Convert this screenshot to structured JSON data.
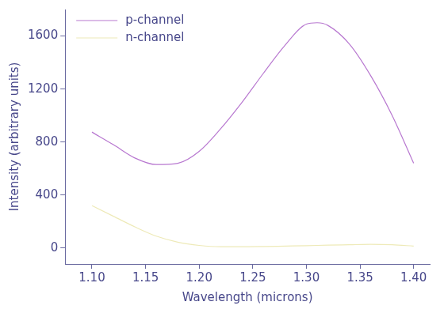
{
  "chart_data": {
    "type": "line",
    "x_label": "Wavelength (microns)",
    "y_label": "Intensity (arbitrary units)",
    "xlim": [
      1.075,
      1.415
    ],
    "xticks": [
      {
        "value": 1.1,
        "label": "1.10"
      },
      1.15,
      {
        "value": 1.2,
        "label": "1.20"
      },
      1.25,
      {
        "value": 1.3,
        "label": "1.30"
      },
      1.35,
      {
        "value": 1.4,
        "label": "1.40"
      }
    ],
    "ylim": [
      -120,
      1800
    ],
    "yticks": [
      0,
      400,
      800,
      1200,
      1600
    ],
    "grid": false,
    "legend": "upper left",
    "series": [
      {
        "name": "p-channel",
        "color": "#b878d0",
        "x": [
          1.1,
          1.12,
          1.14,
          1.16,
          1.18,
          1.2,
          1.22,
          1.24,
          1.26,
          1.28,
          1.3,
          1.31,
          1.32,
          1.34,
          1.36,
          1.38,
          1.4
        ],
        "values": [
          875,
          780,
          680,
          630,
          640,
          730,
          900,
          1100,
          1320,
          1530,
          1690,
          1700,
          1680,
          1540,
          1300,
          1000,
          640
        ]
      },
      {
        "name": "n-channel",
        "color": "#eeeab8",
        "x": [
          1.1,
          1.12,
          1.14,
          1.16,
          1.18,
          1.2,
          1.22,
          1.24,
          1.26,
          1.28,
          1.3,
          1.32,
          1.34,
          1.36,
          1.38,
          1.4
        ],
        "values": [
          320,
          240,
          160,
          90,
          45,
          20,
          10,
          10,
          12,
          15,
          18,
          22,
          25,
          28,
          25,
          15
        ]
      }
    ]
  }
}
